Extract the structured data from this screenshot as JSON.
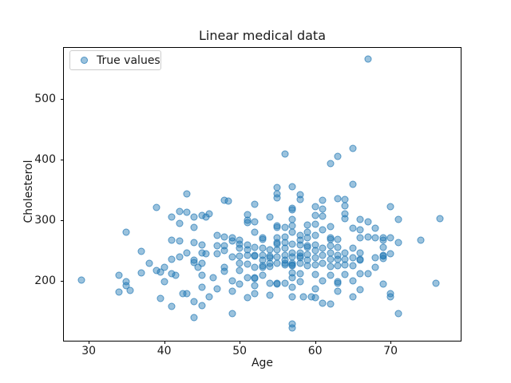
{
  "chart_data": {
    "type": "scatter",
    "title": "Linear medical data",
    "xlabel": "Age",
    "ylabel": "Cholesterol",
    "xlim": [
      26.7,
      79.3
    ],
    "ylim": [
      102,
      584
    ],
    "xticks": [
      30,
      40,
      50,
      60,
      70
    ],
    "yticks": [
      200,
      300,
      400,
      500
    ],
    "grid": false,
    "legend": {
      "position": "upper left",
      "entries": [
        {
          "label": "True values",
          "marker": "circle",
          "color": "#1f77b4",
          "alpha": 0.5
        }
      ]
    },
    "series": [
      {
        "name": "True values",
        "color": "#1f77b4",
        "alpha": 0.45,
        "marker_size_px": 9,
        "points": [
          [
            29,
            202
          ],
          [
            34,
            210
          ],
          [
            34,
            182
          ],
          [
            35,
            281
          ],
          [
            35,
            199
          ],
          [
            35,
            193
          ],
          [
            35.5,
            185
          ],
          [
            37,
            249
          ],
          [
            37,
            214
          ],
          [
            38,
            230
          ],
          [
            39,
            321
          ],
          [
            39,
            217
          ],
          [
            39.5,
            215
          ],
          [
            39.5,
            171
          ],
          [
            40,
            223
          ],
          [
            40,
            199
          ],
          [
            41,
            306
          ],
          [
            41,
            268
          ],
          [
            41,
            236
          ],
          [
            41,
            212
          ],
          [
            41.5,
            210
          ],
          [
            41,
            158
          ],
          [
            42,
            315
          ],
          [
            42,
            295
          ],
          [
            42,
            266
          ],
          [
            42,
            240
          ],
          [
            42.5,
            179
          ],
          [
            43,
            344
          ],
          [
            43,
            313
          ],
          [
            43,
            247
          ],
          [
            43,
            180
          ],
          [
            44,
            305
          ],
          [
            44,
            288
          ],
          [
            44,
            263
          ],
          [
            44,
            234
          ],
          [
            44,
            231
          ],
          [
            44.5,
            223
          ],
          [
            44,
            166
          ],
          [
            44,
            140
          ],
          [
            45,
            308
          ],
          [
            45.5,
            306
          ],
          [
            45,
            260
          ],
          [
            45,
            247
          ],
          [
            45.5,
            245
          ],
          [
            45,
            230
          ],
          [
            45,
            210
          ],
          [
            45,
            190
          ],
          [
            45,
            160
          ],
          [
            46,
            311
          ],
          [
            46,
            174
          ],
          [
            46.5,
            206
          ],
          [
            47,
            276
          ],
          [
            47,
            258
          ],
          [
            47,
            245
          ],
          [
            47,
            187
          ],
          [
            48,
            333
          ],
          [
            48.5,
            332
          ],
          [
            48,
            273
          ],
          [
            48,
            258
          ],
          [
            48,
            250
          ],
          [
            48,
            223
          ],
          [
            48,
            216
          ],
          [
            49,
            271
          ],
          [
            49,
            266
          ],
          [
            49,
            240
          ],
          [
            49,
            201
          ],
          [
            49,
            184
          ],
          [
            49,
            147
          ],
          [
            50,
            268
          ],
          [
            50,
            261
          ],
          [
            50,
            254
          ],
          [
            50,
            241
          ],
          [
            50,
            230
          ],
          [
            50,
            218
          ],
          [
            50,
            195
          ],
          [
            51,
            310
          ],
          [
            51,
            300
          ],
          [
            51,
            296
          ],
          [
            51,
            259
          ],
          [
            51,
            252
          ],
          [
            51,
            243
          ],
          [
            51,
            228
          ],
          [
            51,
            206
          ],
          [
            51,
            173
          ],
          [
            52,
            326
          ],
          [
            52,
            298
          ],
          [
            52,
            280
          ],
          [
            52,
            256
          ],
          [
            52,
            243
          ],
          [
            52,
            241
          ],
          [
            52,
            223
          ],
          [
            52,
            206
          ],
          [
            52,
            204
          ],
          [
            52,
            193
          ],
          [
            52,
            180
          ],
          [
            53,
            271
          ],
          [
            53,
            269
          ],
          [
            53,
            254
          ],
          [
            53,
            243
          ],
          [
            53,
            235
          ],
          [
            53,
            226
          ],
          [
            53,
            223
          ],
          [
            53,
            210
          ],
          [
            54,
            305
          ],
          [
            54,
            252
          ],
          [
            54,
            241
          ],
          [
            54,
            239
          ],
          [
            54,
            230
          ],
          [
            54,
            224
          ],
          [
            54,
            197
          ],
          [
            54,
            177
          ],
          [
            55,
            354
          ],
          [
            55,
            344
          ],
          [
            55,
            337
          ],
          [
            55,
            291
          ],
          [
            55,
            289
          ],
          [
            55,
            271
          ],
          [
            55,
            263
          ],
          [
            55,
            261
          ],
          [
            55,
            252
          ],
          [
            55,
            240
          ],
          [
            55,
            230
          ],
          [
            55,
            197
          ],
          [
            55,
            195
          ],
          [
            56,
            409
          ],
          [
            56,
            289
          ],
          [
            56,
            273
          ],
          [
            56,
            263
          ],
          [
            56,
            255
          ],
          [
            56,
            243
          ],
          [
            56,
            235
          ],
          [
            56,
            229
          ],
          [
            56,
            227
          ],
          [
            56,
            197
          ],
          [
            57,
            355
          ],
          [
            57,
            320
          ],
          [
            57,
            318
          ],
          [
            57,
            301
          ],
          [
            57,
            291
          ],
          [
            57,
            280
          ],
          [
            57,
            261
          ],
          [
            57,
            246
          ],
          [
            57,
            240
          ],
          [
            57,
            229
          ],
          [
            57,
            227
          ],
          [
            57,
            225
          ],
          [
            57,
            214
          ],
          [
            57,
            206
          ],
          [
            57,
            190
          ],
          [
            57,
            174
          ],
          [
            57,
            130
          ],
          [
            57,
            123
          ],
          [
            58,
            343
          ],
          [
            58,
            335
          ],
          [
            58,
            275
          ],
          [
            58,
            268
          ],
          [
            58,
            259
          ],
          [
            58,
            247
          ],
          [
            58,
            241
          ],
          [
            58,
            239
          ],
          [
            58,
            230
          ],
          [
            58,
            212
          ],
          [
            58,
            199
          ],
          [
            58.5,
            174
          ],
          [
            59,
            292
          ],
          [
            59,
            280
          ],
          [
            59,
            272
          ],
          [
            59,
            258
          ],
          [
            59,
            256
          ],
          [
            59,
            244
          ],
          [
            59,
            235
          ],
          [
            59,
            225
          ],
          [
            59.5,
            174
          ],
          [
            60,
            322
          ],
          [
            60,
            308
          ],
          [
            60,
            294
          ],
          [
            60,
            276
          ],
          [
            60,
            260
          ],
          [
            60,
            250
          ],
          [
            60,
            238
          ],
          [
            60,
            227
          ],
          [
            60,
            211
          ],
          [
            60,
            188
          ],
          [
            60,
            173
          ],
          [
            61,
            333
          ],
          [
            61,
            319
          ],
          [
            61,
            307
          ],
          [
            61,
            285
          ],
          [
            61,
            254
          ],
          [
            61,
            242
          ],
          [
            61,
            230
          ],
          [
            61,
            201
          ],
          [
            61,
            164
          ],
          [
            62,
            393
          ],
          [
            62,
            290
          ],
          [
            62,
            271
          ],
          [
            62,
            269
          ],
          [
            62,
            258
          ],
          [
            62,
            247
          ],
          [
            62,
            236
          ],
          [
            62,
            224
          ],
          [
            62,
            210
          ],
          [
            62,
            163
          ],
          [
            63,
            405
          ],
          [
            63,
            336
          ],
          [
            63,
            269
          ],
          [
            63,
            256
          ],
          [
            63,
            242
          ],
          [
            63,
            236
          ],
          [
            63,
            225
          ],
          [
            63,
            199
          ],
          [
            63,
            197
          ],
          [
            63,
            184
          ],
          [
            64,
            335
          ],
          [
            64,
            324
          ],
          [
            64,
            311
          ],
          [
            64,
            303
          ],
          [
            64,
            247
          ],
          [
            64,
            236
          ],
          [
            64,
            227
          ],
          [
            64,
            211
          ],
          [
            65,
            418
          ],
          [
            65,
            360
          ],
          [
            65,
            287
          ],
          [
            65,
            254
          ],
          [
            65,
            238
          ],
          [
            65,
            225
          ],
          [
            65,
            201
          ],
          [
            65,
            174
          ],
          [
            66,
            302
          ],
          [
            66,
            284
          ],
          [
            66,
            271
          ],
          [
            66,
            247
          ],
          [
            66,
            236
          ],
          [
            66,
            234
          ],
          [
            66,
            212
          ],
          [
            66,
            186
          ],
          [
            67,
            565
          ],
          [
            67,
            298
          ],
          [
            67,
            273
          ],
          [
            67,
            212
          ],
          [
            68,
            287
          ],
          [
            68,
            272
          ],
          [
            68,
            238
          ],
          [
            68,
            223
          ],
          [
            69,
            271
          ],
          [
            69,
            267
          ],
          [
            69,
            256
          ],
          [
            69,
            243
          ],
          [
            69,
            241
          ],
          [
            69,
            237
          ],
          [
            69,
            195
          ],
          [
            70,
            322
          ],
          [
            70,
            271
          ],
          [
            70,
            245
          ],
          [
            70,
            179
          ],
          [
            70,
            174
          ],
          [
            71,
            301
          ],
          [
            71,
            263
          ],
          [
            71,
            147
          ],
          [
            74,
            268
          ],
          [
            76,
            197
          ],
          [
            76.5,
            303
          ]
        ]
      }
    ]
  },
  "colors": {
    "marker": "#1f77b4",
    "background": "#ffffff",
    "spine": "#000000",
    "text": "#1a1a1a",
    "legend_border": "#cccccc"
  }
}
